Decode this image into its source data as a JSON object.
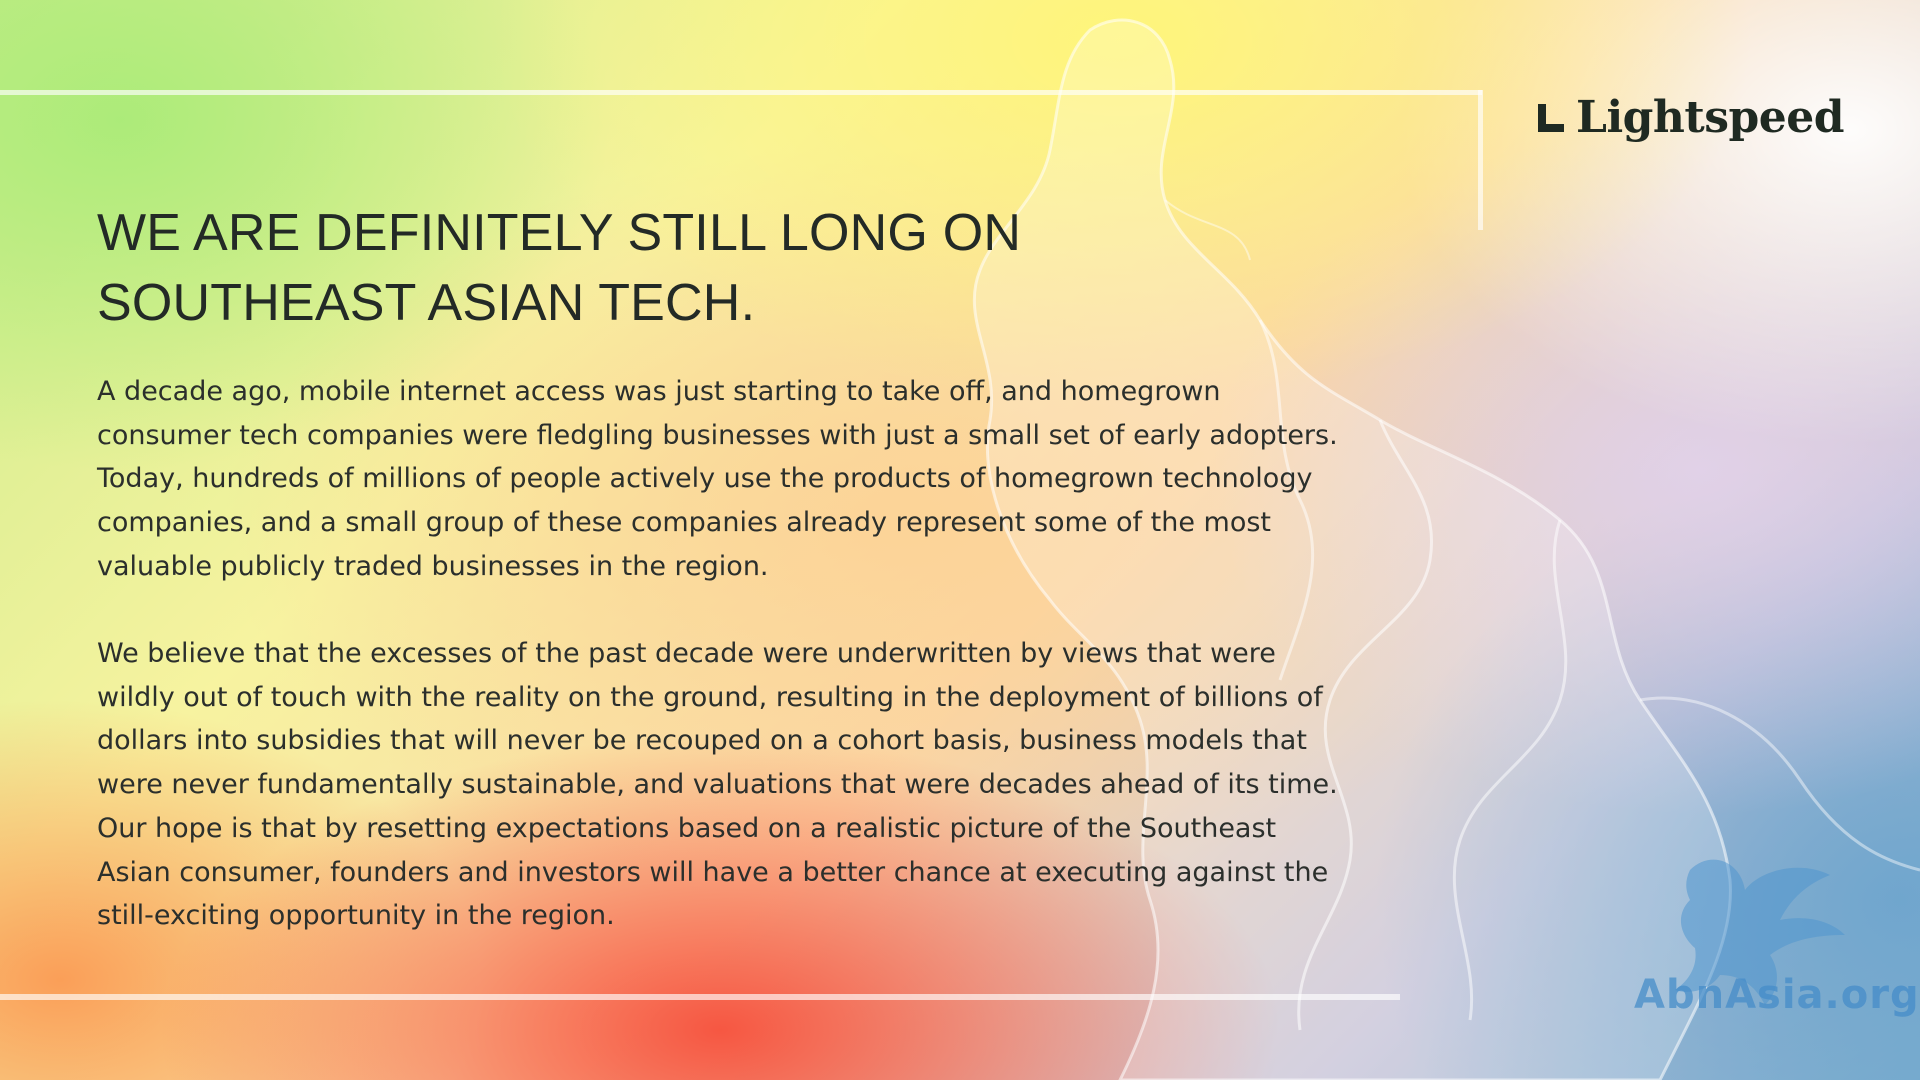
{
  "brand": {
    "name": "Lightspeed",
    "logo_icon": "lightspeed-corner-mark"
  },
  "headline": "WE ARE DEFINITELY STILL LONG ON SOUTHEAST ASIAN TECH.",
  "paragraphs": [
    "A decade ago, mobile internet access was just starting to take off, and homegrown consumer tech companies were fledgling businesses with just a small set of early adopters. Today, hundreds of millions of people actively use the products of homegrown technology companies, and a small group of these companies already represent some of the most valuable publicly traded businesses in the region.",
    "We believe that the excesses of the past decade were underwritten by views that were wildly out of touch with the reality on the ground, resulting in the deployment of billions of dollars into subsidies that will never be recouped on a cohort basis, business models that were never fundamentally sustainable, and valuations that were decades ahead of its time. Our hope is that by resetting expectations based on a realistic picture of the Southeast Asian consumer, founders and investors will have a better chance at executing against the still-exciting opportunity in the region."
  ],
  "watermark": {
    "text": "AbnAsia.org",
    "icon": "bird-emblem-icon"
  },
  "colors": {
    "text": "#232a26",
    "frame": "#ffffff"
  }
}
